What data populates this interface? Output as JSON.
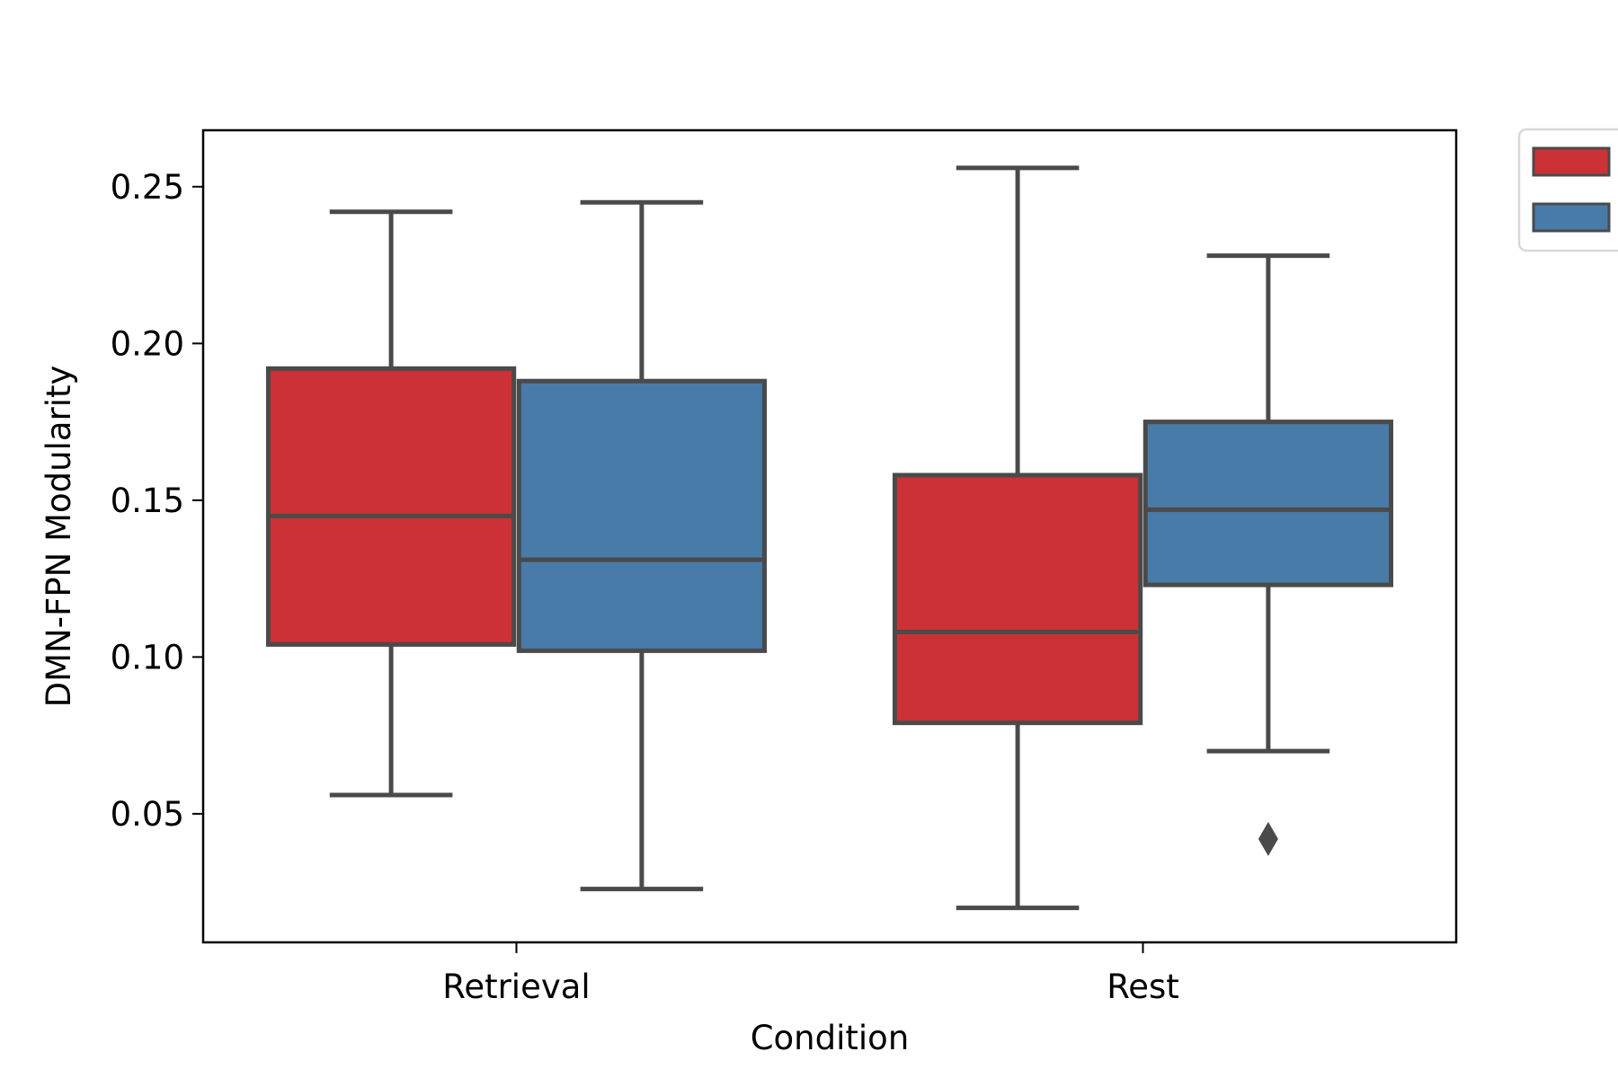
{
  "chart_data": {
    "type": "box",
    "title": "",
    "xlabel": "Condition",
    "ylabel": "DMN-FPN Modularity",
    "categories": [
      "Retrieval",
      "Rest"
    ],
    "ylim": [
      0.009,
      0.268
    ],
    "yticks": [
      0.05,
      0.1,
      0.15,
      0.2,
      0.25
    ],
    "ytick_labels": [
      "0.05",
      "0.10",
      "0.15",
      "0.20",
      "0.25"
    ],
    "grid": false,
    "legend": {
      "placement": "outside-right",
      "entries": [
        {
          "color": "#cc3135",
          "label": ""
        },
        {
          "color": "#487ba8",
          "label": ""
        }
      ]
    },
    "series": [
      {
        "color": "#cc3135",
        "boxes": [
          {
            "category": "Retrieval",
            "whislo": 0.056,
            "q1": 0.104,
            "median": 0.145,
            "q3": 0.192,
            "whishi": 0.242,
            "fliers": []
          },
          {
            "category": "Rest",
            "whislo": 0.02,
            "q1": 0.079,
            "median": 0.108,
            "q3": 0.158,
            "whishi": 0.256,
            "fliers": []
          }
        ]
      },
      {
        "color": "#487ba8",
        "boxes": [
          {
            "category": "Retrieval",
            "whislo": 0.026,
            "q1": 0.102,
            "median": 0.131,
            "q3": 0.188,
            "whishi": 0.245,
            "fliers": []
          },
          {
            "category": "Rest",
            "whislo": 0.07,
            "q1": 0.123,
            "median": 0.147,
            "q3": 0.175,
            "whishi": 0.228,
            "fliers": [
              0.042
            ]
          }
        ]
      }
    ]
  }
}
